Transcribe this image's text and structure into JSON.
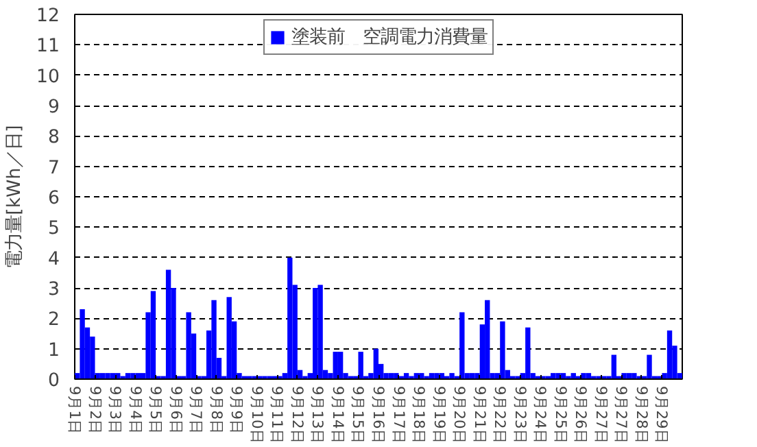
{
  "chart_data": {
    "type": "bar",
    "ylabel": "電力量[kWh／日]",
    "legend": "top",
    "grid": "y",
    "ylim": [
      0,
      12
    ],
    "yticks": [
      0,
      1,
      2,
      3,
      4,
      5,
      6,
      7,
      8,
      9,
      10,
      11,
      12
    ],
    "categories": [
      "9月1日",
      null,
      null,
      null,
      "9月2日",
      null,
      null,
      null,
      "9月3日",
      null,
      null,
      null,
      "9月4日",
      null,
      null,
      null,
      "9月5日",
      null,
      null,
      null,
      "9月6日",
      null,
      null,
      null,
      "9月7日",
      null,
      null,
      null,
      "9月8日",
      null,
      null,
      null,
      "9月9日",
      null,
      null,
      null,
      "9月10日",
      null,
      null,
      null,
      "9月11日",
      null,
      null,
      null,
      "9月12日",
      null,
      null,
      null,
      "9月13日",
      null,
      null,
      null,
      "9月14日",
      null,
      null,
      null,
      "9月15日",
      null,
      null,
      null,
      "9月16日",
      null,
      null,
      null,
      "9月17日",
      null,
      null,
      null,
      "9月18日",
      null,
      null,
      null,
      "9月19日",
      null,
      null,
      null,
      "9月20日",
      null,
      null,
      null,
      "9月21日",
      null,
      null,
      null,
      "9月22日",
      null,
      null,
      null,
      "9月23日",
      null,
      null,
      null,
      "9月24日",
      null,
      null,
      null,
      "9月25日",
      null,
      null,
      null,
      "9月26日",
      null,
      null,
      null,
      "9月27日",
      null,
      null,
      null,
      "9月27日",
      null,
      null,
      null,
      "9月28日",
      null,
      null,
      null,
      "9月29日",
      null,
      null,
      null
    ],
    "series": [
      {
        "name": "塗装前　空調電力消費量",
        "color": "#0000ff",
        "values": [
          0.2,
          2.3,
          1.7,
          1.4,
          0.2,
          0.2,
          0.2,
          0.2,
          0.2,
          0.1,
          0.2,
          0.2,
          0.2,
          0.2,
          2.2,
          2.9,
          0.1,
          0.1,
          3.6,
          3.0,
          0.1,
          0.1,
          2.2,
          1.5,
          0.1,
          0.1,
          1.6,
          2.6,
          0.7,
          0.1,
          2.7,
          1.9,
          0.2,
          0.1,
          0.1,
          0.1,
          0.1,
          0.1,
          0.1,
          0.1,
          0.1,
          0.2,
          4.0,
          3.1,
          0.3,
          0.1,
          0.2,
          3.0,
          3.1,
          0.3,
          0.2,
          0.9,
          0.9,
          0.2,
          0.1,
          0.1,
          0.9,
          0.1,
          0.2,
          1.0,
          0.5,
          0.2,
          0.2,
          0.2,
          0.1,
          0.2,
          0.1,
          0.2,
          0.2,
          0.1,
          0.2,
          0.2,
          0.2,
          0.1,
          0.2,
          0.1,
          2.2,
          0.2,
          0.2,
          0.2,
          1.8,
          2.6,
          0.2,
          0.2,
          1.9,
          0.3,
          0.1,
          0.1,
          0.2,
          1.7,
          0.2,
          0.1,
          0.1,
          0.1,
          0.2,
          0.2,
          0.2,
          0.1,
          0.2,
          0.1,
          0.2,
          0.2,
          0.1,
          0.1,
          0.1,
          0.1,
          0.8,
          0.1,
          0.2,
          0.2,
          0.2,
          0.1,
          0.1,
          0.8,
          0.1,
          0.1,
          0.2,
          1.6,
          1.1,
          0.2
        ]
      }
    ]
  }
}
